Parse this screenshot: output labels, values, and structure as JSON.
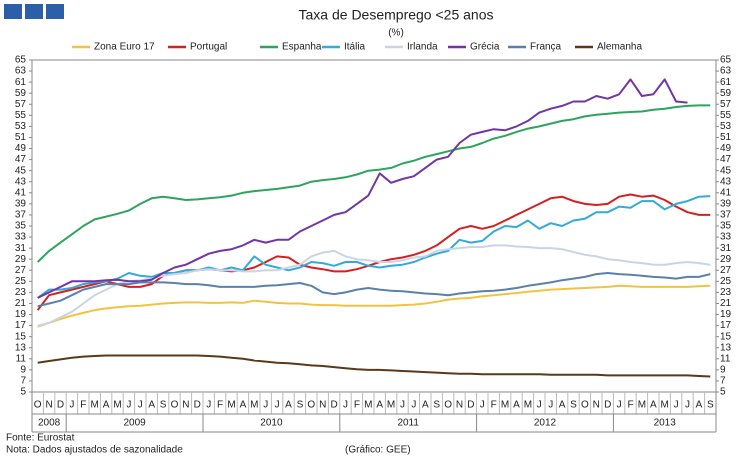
{
  "chart_data": {
    "type": "line",
    "title": "Taxa de Desemprego <25 anos",
    "subtitle": "(%)",
    "source": "Fonte: Eurostat",
    "note": "Nota: Dados ajustados de sazonalidade",
    "credit": "(Gráfico: GEE)",
    "categories": [
      "O",
      "N",
      "D",
      "J",
      "F",
      "M",
      "A",
      "M",
      "J",
      "J",
      "A",
      "S",
      "O",
      "N",
      "D",
      "J",
      "F",
      "M",
      "A",
      "M",
      "J",
      "J",
      "A",
      "S",
      "O",
      "N",
      "D",
      "J",
      "F",
      "M",
      "A",
      "M",
      "J",
      "J",
      "A",
      "S",
      "O",
      "N",
      "D",
      "J",
      "F",
      "M",
      "A",
      "M",
      "J",
      "J",
      "A",
      "S",
      "O",
      "N",
      "D",
      "J",
      "F",
      "M",
      "A",
      "M",
      "J",
      "J",
      "A",
      "S"
    ],
    "years": [
      "2008",
      "2009",
      "2010",
      "2011",
      "2012",
      "2013"
    ],
    "ylim": [
      5,
      65
    ],
    "yticks": [
      5,
      7,
      9,
      11,
      13,
      15,
      17,
      19,
      21,
      23,
      25,
      27,
      29,
      31,
      33,
      35,
      37,
      39,
      41,
      43,
      45,
      47,
      49,
      51,
      53,
      55,
      57,
      59,
      61,
      63,
      65
    ],
    "grid": false,
    "legend": "top",
    "series": [
      {
        "name": "Zona Euro 17",
        "color": "#f2c343",
        "values": [
          16.8,
          17.5,
          18.2,
          18.8,
          19.3,
          19.8,
          20.1,
          20.3,
          20.5,
          20.6,
          20.8,
          21.0,
          21.1,
          21.2,
          21.2,
          21.1,
          21.1,
          21.2,
          21.1,
          21.5,
          21.3,
          21.1,
          21.0,
          21.0,
          20.8,
          20.7,
          20.7,
          20.6,
          20.6,
          20.6,
          20.6,
          20.6,
          20.7,
          20.8,
          21.0,
          21.3,
          21.7,
          21.9,
          22.0,
          22.3,
          22.5,
          22.7,
          22.9,
          23.1,
          23.3,
          23.5,
          23.6,
          23.7,
          23.8,
          23.9,
          24.0,
          24.2,
          24.1,
          24.0,
          24.0,
          24.0,
          24.0,
          24.0,
          24.1,
          24.2
        ]
      },
      {
        "name": "Portugal",
        "color": "#d42020",
        "values": [
          19.8,
          22.5,
          23.0,
          23.5,
          24.0,
          24.5,
          25.0,
          24.5,
          24.0,
          24.0,
          24.5,
          26.0,
          26.5,
          27.0,
          27.0,
          27.2,
          27.0,
          26.8,
          27.0,
          27.5,
          28.5,
          29.5,
          29.3,
          28.0,
          27.5,
          27.2,
          26.8,
          26.8,
          27.2,
          27.8,
          28.5,
          29.0,
          29.3,
          29.8,
          30.5,
          31.5,
          33.0,
          34.5,
          35.0,
          34.5,
          35.0,
          36.0,
          37.0,
          38.0,
          39.0,
          40.0,
          40.3,
          39.5,
          39.0,
          38.8,
          39.0,
          40.3,
          40.7,
          40.3,
          40.5,
          39.7,
          38.5,
          37.5,
          37.0,
          37.0
        ]
      },
      {
        "name": "Espanha",
        "color": "#2ea45c",
        "values": [
          28.5,
          30.5,
          32.0,
          33.5,
          35.0,
          36.2,
          36.7,
          37.2,
          37.8,
          39.0,
          40.0,
          40.3,
          40.0,
          39.7,
          39.8,
          40.0,
          40.2,
          40.5,
          41.0,
          41.3,
          41.5,
          41.7,
          42.0,
          42.3,
          43.0,
          43.3,
          43.5,
          43.8,
          44.3,
          45.0,
          45.2,
          45.5,
          46.3,
          46.8,
          47.5,
          48.0,
          48.5,
          49.0,
          49.3,
          50.0,
          50.8,
          51.3,
          52.0,
          52.6,
          53.0,
          53.5,
          54.0,
          54.3,
          54.8,
          55.1,
          55.3,
          55.5,
          55.6,
          55.7,
          56.0,
          56.2,
          56.5,
          56.7,
          56.8,
          56.8
        ]
      },
      {
        "name": "Itália",
        "color": "#33aad8",
        "values": [
          22.0,
          23.5,
          23.5,
          23.8,
          24.5,
          24.8,
          25.0,
          25.5,
          26.5,
          26.0,
          25.8,
          26.5,
          26.5,
          27.0,
          27.0,
          27.5,
          27.0,
          27.5,
          27.0,
          29.5,
          28.0,
          27.5,
          27.0,
          27.5,
          28.5,
          28.3,
          27.8,
          28.5,
          28.5,
          27.8,
          27.5,
          27.8,
          28.0,
          28.5,
          29.3,
          30.0,
          30.5,
          32.5,
          32.0,
          32.3,
          34.0,
          35.0,
          34.8,
          36.0,
          34.5,
          35.5,
          35.0,
          36.0,
          36.3,
          37.5,
          37.5,
          38.5,
          38.3,
          39.5,
          39.5,
          38.0,
          39.0,
          39.5,
          40.3,
          40.4
        ]
      },
      {
        "name": "Irlanda",
        "color": "#c9d5e6",
        "values": [
          17.0,
          17.5,
          18.5,
          19.5,
          21.0,
          22.5,
          23.5,
          24.5,
          25.0,
          25.2,
          25.5,
          26.0,
          26.3,
          26.5,
          27.0,
          27.2,
          27.0,
          27.0,
          26.8,
          26.8,
          27.0,
          27.0,
          27.5,
          28.0,
          29.5,
          30.2,
          30.5,
          29.5,
          29.0,
          28.8,
          28.5,
          28.5,
          28.8,
          29.3,
          29.5,
          30.5,
          30.8,
          31.0,
          31.2,
          31.2,
          31.5,
          31.5,
          31.3,
          31.2,
          31.0,
          31.0,
          30.8,
          30.3,
          29.8,
          29.5,
          29.0,
          28.8,
          28.5,
          28.3,
          28.0,
          28.0,
          28.3,
          28.5,
          28.3,
          28.0
        ]
      },
      {
        "name": "Grécia",
        "color": "#7236a2",
        "values": [
          22.0,
          23.0,
          24.0,
          25.0,
          25.0,
          25.0,
          25.2,
          25.3,
          25.0,
          25.0,
          25.3,
          26.5,
          27.5,
          28.0,
          29.0,
          30.0,
          30.5,
          30.8,
          31.5,
          32.5,
          32.0,
          32.5,
          32.5,
          34.0,
          35.0,
          36.0,
          37.0,
          37.5,
          39.0,
          40.5,
          44.5,
          42.8,
          43.5,
          44.0,
          45.5,
          47.0,
          47.5,
          50.0,
          51.5,
          52.0,
          52.5,
          52.3,
          53.0,
          54.0,
          55.5,
          56.2,
          56.7,
          57.5,
          57.5,
          58.5,
          58.0,
          58.8,
          61.5,
          58.5,
          58.8,
          61.5,
          57.5,
          57.3,
          null,
          null
        ]
      },
      {
        "name": "França",
        "color": "#5b80aa",
        "values": [
          20.5,
          21.0,
          21.5,
          22.5,
          23.5,
          24.0,
          24.5,
          24.5,
          24.5,
          24.8,
          24.8,
          24.8,
          24.7,
          24.5,
          24.5,
          24.3,
          24.0,
          24.0,
          24.0,
          24.0,
          24.2,
          24.3,
          24.5,
          24.7,
          24.2,
          23.0,
          22.7,
          23.0,
          23.5,
          23.8,
          23.5,
          23.3,
          23.2,
          23.0,
          22.8,
          22.7,
          22.5,
          22.8,
          23.0,
          23.2,
          23.3,
          23.5,
          23.8,
          24.2,
          24.5,
          24.8,
          25.2,
          25.5,
          25.8,
          26.3,
          26.5,
          26.3,
          26.2,
          26.0,
          25.8,
          25.7,
          25.5,
          25.8,
          25.8,
          26.3
        ]
      },
      {
        "name": "Alemanha",
        "color": "#5a3a18",
        "values": [
          10.3,
          10.6,
          10.9,
          11.2,
          11.4,
          11.5,
          11.6,
          11.6,
          11.6,
          11.6,
          11.6,
          11.6,
          11.6,
          11.6,
          11.6,
          11.5,
          11.4,
          11.2,
          11.0,
          10.7,
          10.5,
          10.3,
          10.2,
          10.0,
          9.8,
          9.7,
          9.5,
          9.3,
          9.1,
          9.0,
          9.0,
          8.9,
          8.8,
          8.7,
          8.6,
          8.5,
          8.4,
          8.3,
          8.3,
          8.2,
          8.2,
          8.2,
          8.2,
          8.2,
          8.2,
          8.1,
          8.1,
          8.1,
          8.1,
          8.1,
          8.0,
          8.0,
          8.0,
          8.0,
          8.0,
          8.0,
          8.0,
          8.0,
          7.9,
          7.8
        ]
      }
    ]
  }
}
